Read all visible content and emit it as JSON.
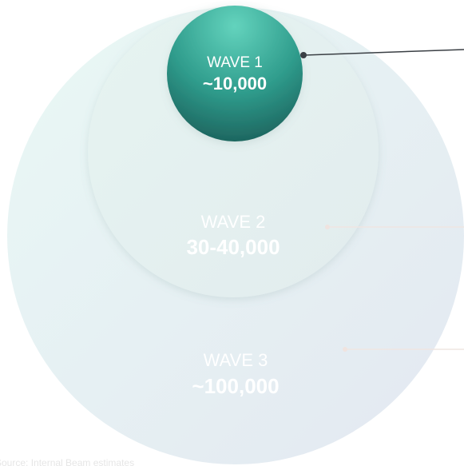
{
  "waves": [
    {
      "label": "WAVE 1",
      "value": "~10,000"
    },
    {
      "label": "WAVE 2",
      "value": "30-40,000"
    },
    {
      "label": "WAVE 3",
      "value": "~100,000"
    }
  ],
  "source": "Source: Internal Beam estimates"
}
